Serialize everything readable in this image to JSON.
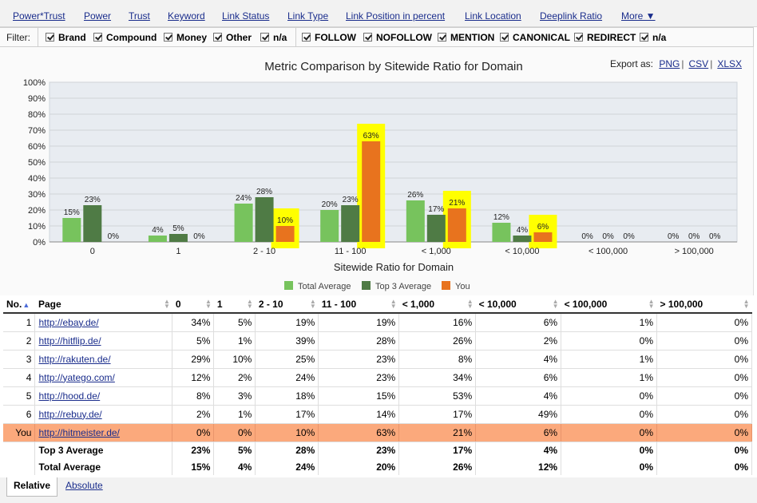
{
  "nav": {
    "tabs": [
      "Power*Trust",
      "Power",
      "Trust",
      "Keyword",
      "Link Status",
      "Link Type",
      "Link Position in percent",
      "Link Location",
      "Deeplink Ratio",
      "More ▼"
    ]
  },
  "filter": {
    "label": "Filter:",
    "group1": [
      "Brand",
      "Compound",
      "Money",
      "Other",
      "n/a"
    ],
    "group2": [
      "FOLLOW",
      "NOFOLLOW",
      "MENTION",
      "CANONICAL",
      "REDIRECT",
      "n/a"
    ]
  },
  "export": {
    "label": "Export as:",
    "png": "PNG",
    "csv": "CSV",
    "xlsx": "XLSX"
  },
  "chart_data": {
    "type": "bar",
    "title": "Metric Comparison by Sitewide Ratio for Domain",
    "xlabel": "Sitewide Ratio for Domain",
    "ylabel": "",
    "ylim": [
      0,
      100
    ],
    "yticks": [
      "0%",
      "10%",
      "20%",
      "30%",
      "40%",
      "50%",
      "60%",
      "70%",
      "80%",
      "90%",
      "100%"
    ],
    "categories": [
      "0",
      "1",
      "2 - 10",
      "11 - 100",
      "< 1,000",
      "< 10,000",
      "< 100,000",
      "> 100,000"
    ],
    "series": [
      {
        "name": "Total Average",
        "color": "#77c35d",
        "values": [
          15,
          4,
          24,
          20,
          26,
          12,
          0,
          0
        ]
      },
      {
        "name": "Top 3 Average",
        "color": "#4f7b45",
        "values": [
          23,
          5,
          28,
          23,
          17,
          4,
          0,
          0
        ]
      },
      {
        "name": "You",
        "color": "#e8731e",
        "values": [
          0,
          0,
          10,
          63,
          21,
          6,
          0,
          0
        ]
      }
    ],
    "highlight_color": "#ffff00",
    "grid": true,
    "legend": "bottom-center"
  },
  "table": {
    "headers": [
      "No.",
      "Page",
      "0",
      "1",
      "2 - 10",
      "11 - 100",
      "< 1,000",
      "< 10,000",
      "< 100,000",
      "> 100,000"
    ],
    "rows": [
      {
        "no": "1",
        "page": "http://ebay.de/",
        "vals": [
          "34%",
          "5%",
          "19%",
          "19%",
          "16%",
          "6%",
          "1%",
          "0%"
        ]
      },
      {
        "no": "2",
        "page": "http://hitflip.de/",
        "vals": [
          "5%",
          "1%",
          "39%",
          "28%",
          "26%",
          "2%",
          "0%",
          "0%"
        ]
      },
      {
        "no": "3",
        "page": "http://rakuten.de/",
        "vals": [
          "29%",
          "10%",
          "25%",
          "23%",
          "8%",
          "4%",
          "1%",
          "0%"
        ]
      },
      {
        "no": "4",
        "page": "http://yatego.com/",
        "vals": [
          "12%",
          "2%",
          "24%",
          "23%",
          "34%",
          "6%",
          "1%",
          "0%"
        ]
      },
      {
        "no": "5",
        "page": "http://hood.de/",
        "vals": [
          "8%",
          "3%",
          "18%",
          "15%",
          "53%",
          "4%",
          "0%",
          "0%"
        ]
      },
      {
        "no": "6",
        "page": "http://rebuy.de/",
        "vals": [
          "2%",
          "1%",
          "17%",
          "14%",
          "17%",
          "49%",
          "0%",
          "0%"
        ]
      },
      {
        "no": "You",
        "page": "http://hitmeister.de/",
        "vals": [
          "0%",
          "0%",
          "10%",
          "63%",
          "21%",
          "6%",
          "0%",
          "0%"
        ]
      }
    ],
    "summary": [
      {
        "label": "Top 3 Average",
        "vals": [
          "23%",
          "5%",
          "28%",
          "23%",
          "17%",
          "4%",
          "0%",
          "0%"
        ]
      },
      {
        "label": "Total Average",
        "vals": [
          "15%",
          "4%",
          "24%",
          "20%",
          "26%",
          "12%",
          "0%",
          "0%"
        ]
      }
    ]
  },
  "bottom_tabs": {
    "active": "Relative",
    "other": "Absolute"
  }
}
